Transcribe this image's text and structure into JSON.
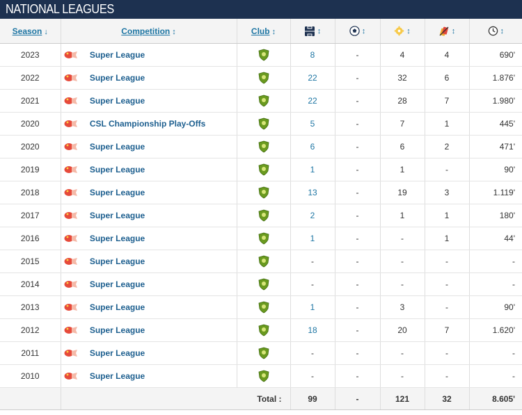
{
  "section_title": "NATIONAL LEAGUES",
  "columns": {
    "season": "Season",
    "competition": "Competition",
    "club": "Club",
    "appearances_icon": "pitch-icon",
    "goals_icon": "football-icon",
    "assists_icon": "assist-icon",
    "substitutions_icon": "substitution-icon",
    "minutes_icon": "clock-icon"
  },
  "sort_arrows": {
    "season": "↓",
    "other": "↕"
  },
  "rows": [
    {
      "season": "2023",
      "competition": "Super League",
      "apps": "8",
      "goals": "-",
      "assists": "4",
      "subs": "4",
      "minutes": "690'"
    },
    {
      "season": "2022",
      "competition": "Super League",
      "apps": "22",
      "goals": "-",
      "assists": "32",
      "subs": "6",
      "minutes": "1.876'"
    },
    {
      "season": "2021",
      "competition": "Super League",
      "apps": "22",
      "goals": "-",
      "assists": "28",
      "subs": "7",
      "minutes": "1.980'"
    },
    {
      "season": "2020",
      "competition": "CSL Championship Play-Offs",
      "apps": "5",
      "goals": "-",
      "assists": "7",
      "subs": "1",
      "minutes": "445'"
    },
    {
      "season": "2020",
      "competition": "Super League",
      "apps": "6",
      "goals": "-",
      "assists": "6",
      "subs": "2",
      "minutes": "471'"
    },
    {
      "season": "2019",
      "competition": "Super League",
      "apps": "1",
      "goals": "-",
      "assists": "1",
      "subs": "-",
      "minutes": "90'"
    },
    {
      "season": "2018",
      "competition": "Super League",
      "apps": "13",
      "goals": "-",
      "assists": "19",
      "subs": "3",
      "minutes": "1.119'"
    },
    {
      "season": "2017",
      "competition": "Super League",
      "apps": "2",
      "goals": "-",
      "assists": "1",
      "subs": "1",
      "minutes": "180'"
    },
    {
      "season": "2016",
      "competition": "Super League",
      "apps": "1",
      "goals": "-",
      "assists": "-",
      "subs": "1",
      "minutes": "44'"
    },
    {
      "season": "2015",
      "competition": "Super League",
      "apps": "-",
      "goals": "-",
      "assists": "-",
      "subs": "-",
      "minutes": "-"
    },
    {
      "season": "2014",
      "competition": "Super League",
      "apps": "-",
      "goals": "-",
      "assists": "-",
      "subs": "-",
      "minutes": "-"
    },
    {
      "season": "2013",
      "competition": "Super League",
      "apps": "1",
      "goals": "-",
      "assists": "3",
      "subs": "-",
      "minutes": "90'"
    },
    {
      "season": "2012",
      "competition": "Super League",
      "apps": "18",
      "goals": "-",
      "assists": "20",
      "subs": "7",
      "minutes": "1.620'"
    },
    {
      "season": "2011",
      "competition": "Super League",
      "apps": "-",
      "goals": "-",
      "assists": "-",
      "subs": "-",
      "minutes": "-"
    },
    {
      "season": "2010",
      "competition": "Super League",
      "apps": "-",
      "goals": "-",
      "assists": "-",
      "subs": "-",
      "minutes": "-"
    }
  ],
  "totals": {
    "label": "Total :",
    "apps": "99",
    "goals": "-",
    "assists": "121",
    "subs": "32",
    "minutes": "8.605'"
  },
  "colors": {
    "header_bg": "#1d3150",
    "link": "#1d75a3",
    "club_badge": "#6a9a1f"
  }
}
